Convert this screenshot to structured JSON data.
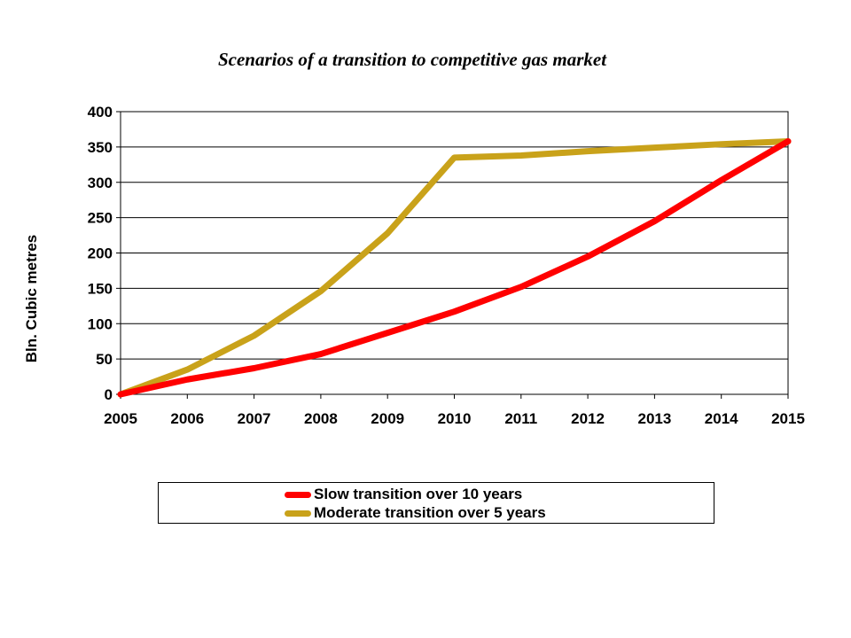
{
  "chart_data": {
    "type": "line",
    "title": "Scenarios of a transition to competitive gas market",
    "xlabel": "",
    "ylabel": "Bln. Cubic metres",
    "x": [
      2005,
      2006,
      2007,
      2008,
      2009,
      2010,
      2011,
      2012,
      2013,
      2014,
      2015
    ],
    "xlim": [
      2005,
      2015
    ],
    "ylim": [
      0,
      400
    ],
    "yticks": [
      0,
      50,
      100,
      150,
      200,
      250,
      300,
      350,
      400
    ],
    "grid": true,
    "legend_position": "bottom",
    "series": [
      {
        "name": "Slow transition over 10 years",
        "color": "#ff0000",
        "values": [
          0,
          21,
          37,
          57,
          87,
          117,
          152,
          195,
          245,
          303,
          358
        ]
      },
      {
        "name": "Moderate transition over 5 years",
        "color": "#c9a21a",
        "values": [
          0,
          35,
          83,
          146,
          228,
          335,
          338,
          344,
          349,
          354,
          358
        ]
      }
    ]
  }
}
